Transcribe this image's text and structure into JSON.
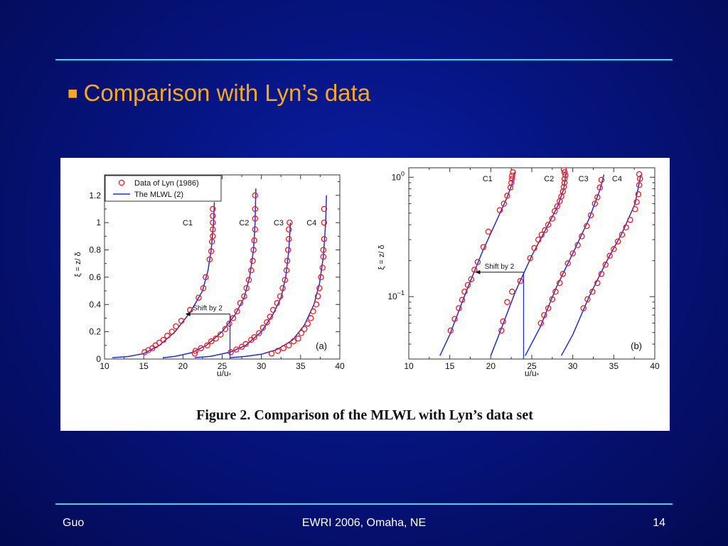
{
  "slide": {
    "title_bullet": "■",
    "title": "Comparison with Lyn’s data",
    "footer": {
      "author": "Guo",
      "event": "EWRI 2006, Omaha, NE",
      "page": "14"
    }
  },
  "figure": {
    "caption": "Figure 2.  Comparison of the MLWL with Lyn’s data set"
  },
  "colors": {
    "data_marker": "#ee1c24",
    "model_line": "#1f2fd6",
    "title": "#f7a81b",
    "rule": "#39d7e6"
  },
  "chart_data": [
    {
      "type": "scatter",
      "panel_label": "(a)",
      "xlabel": "u/u*",
      "ylabel": "ξ = z/ δ",
      "xlim": [
        10,
        40
      ],
      "ylim": [
        0,
        1.35
      ],
      "x_ticks": [
        "10",
        "15",
        "20",
        "25",
        "30",
        "35",
        "40"
      ],
      "y_ticks": [
        "0",
        "0.2",
        "0.4",
        "0.6",
        "0.8",
        "1",
        "1.2"
      ],
      "legend": {
        "position": "top-left",
        "entries": [
          "Data of Lyn (1986)",
          "The MLWL (2)"
        ]
      },
      "annotation": {
        "text": "Shift by 2",
        "from_x": 26,
        "to_x": 20.3,
        "y": 0.33
      },
      "series": [
        {
          "label": "C1",
          "label_pos": [
            20.6,
            1.0
          ],
          "points": [
            [
              15.1,
              0.05
            ],
            [
              15.6,
              0.065
            ],
            [
              16.1,
              0.08
            ],
            [
              16.5,
              0.1
            ],
            [
              17.0,
              0.12
            ],
            [
              17.5,
              0.14
            ],
            [
              18.0,
              0.17
            ],
            [
              18.6,
              0.2
            ],
            [
              19.1,
              0.24
            ],
            [
              19.8,
              0.28
            ],
            [
              20.9,
              0.36
            ],
            [
              22.0,
              0.45
            ],
            [
              22.6,
              0.52
            ],
            [
              22.9,
              0.6
            ],
            [
              23.4,
              0.73
            ],
            [
              23.6,
              0.79
            ],
            [
              23.7,
              0.86
            ],
            [
              23.8,
              0.9
            ],
            [
              23.8,
              0.95
            ],
            [
              23.8,
              1.0
            ],
            [
              23.8,
              1.05
            ],
            [
              23.8,
              1.1
            ]
          ],
          "curve": [
            [
              11,
              0.01
            ],
            [
              13,
              0.018
            ],
            [
              15,
              0.04
            ],
            [
              17,
              0.1
            ],
            [
              19,
              0.2
            ],
            [
              21,
              0.35
            ],
            [
              22.5,
              0.5
            ],
            [
              23.2,
              0.65
            ],
            [
              23.6,
              0.8
            ],
            [
              23.9,
              1.0
            ],
            [
              24.0,
              1.15
            ]
          ]
        },
        {
          "label": "C2",
          "label_pos": [
            27.8,
            1.0
          ],
          "points": [
            [
              21.5,
              0.04
            ],
            [
              21.6,
              0.06
            ],
            [
              22.3,
              0.08
            ],
            [
              23.1,
              0.1
            ],
            [
              23.6,
              0.13
            ],
            [
              24.2,
              0.15
            ],
            [
              24.8,
              0.18
            ],
            [
              25.4,
              0.22
            ],
            [
              25.9,
              0.26
            ],
            [
              26.4,
              0.3
            ],
            [
              26.9,
              0.35
            ],
            [
              27.3,
              0.41
            ],
            [
              27.8,
              0.46
            ],
            [
              28.1,
              0.52
            ],
            [
              28.4,
              0.58
            ],
            [
              28.7,
              0.65
            ],
            [
              28.9,
              0.72
            ],
            [
              29.0,
              0.8
            ],
            [
              29.1,
              0.87
            ],
            [
              29.2,
              0.95
            ],
            [
              29.2,
              1.03
            ],
            [
              29.2,
              1.1
            ],
            [
              29.2,
              1.2
            ]
          ],
          "curve": [
            [
              17.5,
              0.01
            ],
            [
              19,
              0.02
            ],
            [
              21,
              0.045
            ],
            [
              23,
              0.1
            ],
            [
              25,
              0.2
            ],
            [
              26.7,
              0.33
            ],
            [
              27.8,
              0.45
            ],
            [
              28.5,
              0.6
            ],
            [
              29.0,
              0.8
            ],
            [
              29.2,
              1.0
            ],
            [
              29.3,
              1.25
            ]
          ]
        },
        {
          "label": "C3",
          "label_pos": [
            32.2,
            1.0
          ],
          "points": [
            [
              26.1,
              0.05
            ],
            [
              26.8,
              0.07
            ],
            [
              27.5,
              0.09
            ],
            [
              28.0,
              0.11
            ],
            [
              28.7,
              0.14
            ],
            [
              29.1,
              0.16
            ],
            [
              29.7,
              0.19
            ],
            [
              30.2,
              0.23
            ],
            [
              30.7,
              0.27
            ],
            [
              31.1,
              0.31
            ],
            [
              31.5,
              0.36
            ],
            [
              32.0,
              0.41
            ],
            [
              32.4,
              0.46
            ],
            [
              32.7,
              0.52
            ],
            [
              33.0,
              0.58
            ],
            [
              33.2,
              0.65
            ],
            [
              33.3,
              0.72
            ],
            [
              33.4,
              0.8
            ],
            [
              33.5,
              0.88
            ],
            [
              33.5,
              0.95
            ],
            [
              33.6,
              1.0
            ]
          ],
          "curve": [
            [
              21.5,
              0.01
            ],
            [
              23.5,
              0.02
            ],
            [
              26,
              0.05
            ],
            [
              28,
              0.1
            ],
            [
              30,
              0.2
            ],
            [
              31.5,
              0.33
            ],
            [
              32.5,
              0.45
            ],
            [
              33.1,
              0.6
            ],
            [
              33.5,
              0.8
            ],
            [
              33.7,
              1.0
            ]
          ]
        },
        {
          "label": "C4",
          "label_pos": [
            36.4,
            1.0
          ],
          "points": [
            [
              31.3,
              0.04
            ],
            [
              32.1,
              0.06
            ],
            [
              32.8,
              0.08
            ],
            [
              33.5,
              0.1
            ],
            [
              34.1,
              0.13
            ],
            [
              34.7,
              0.15
            ],
            [
              35.1,
              0.19
            ],
            [
              35.5,
              0.22
            ],
            [
              35.9,
              0.26
            ],
            [
              36.3,
              0.3
            ],
            [
              36.6,
              0.35
            ],
            [
              37.0,
              0.4
            ],
            [
              37.2,
              0.46
            ],
            [
              37.4,
              0.52
            ],
            [
              37.6,
              0.6
            ],
            [
              37.8,
              0.67
            ],
            [
              37.9,
              0.75
            ],
            [
              37.9,
              0.8
            ],
            [
              38.0,
              0.88
            ],
            [
              38.0,
              1.0
            ],
            [
              38.0,
              1.1
            ]
          ],
          "curve": [
            [
              26,
              0.01
            ],
            [
              28,
              0.02
            ],
            [
              30,
              0.035
            ],
            [
              32,
              0.07
            ],
            [
              34,
              0.14
            ],
            [
              35.5,
              0.25
            ],
            [
              36.7,
              0.4
            ],
            [
              37.4,
              0.55
            ],
            [
              37.9,
              0.75
            ],
            [
              38.2,
              1.0
            ],
            [
              38.3,
              1.2
            ]
          ]
        }
      ]
    },
    {
      "type": "scatter",
      "panel_label": "(b)",
      "xlabel": "u/u*",
      "ylabel": "ξ = z/ δ",
      "xlim": [
        10,
        40
      ],
      "ylim": [
        0.03,
        1.2
      ],
      "y_scale": "log",
      "x_ticks": [
        "10",
        "15",
        "20",
        "25",
        "30",
        "35",
        "40"
      ],
      "y_ticks": [
        {
          "value": 1,
          "base": "10",
          "exp": "0"
        },
        {
          "value": 0.1,
          "base": "10",
          "exp": "−1"
        }
      ],
      "annotation": {
        "text": "Shift by 2",
        "from_x": 24,
        "to_x": 18.1,
        "y": 0.16
      },
      "series": [
        {
          "label": "C1",
          "label_pos": [
            19.6,
            0.98
          ],
          "points": [
            [
              15.1,
              0.052
            ],
            [
              15.6,
              0.065
            ],
            [
              16.1,
              0.08
            ],
            [
              16.5,
              0.094
            ],
            [
              16.8,
              0.11
            ],
            [
              17.2,
              0.125
            ],
            [
              17.6,
              0.14
            ],
            [
              18.0,
              0.168
            ],
            [
              18.4,
              0.195
            ],
            [
              19.1,
              0.26
            ],
            [
              19.7,
              0.35
            ],
            [
              21.1,
              0.53
            ],
            [
              21.6,
              0.6
            ],
            [
              22.0,
              0.7
            ],
            [
              22.4,
              0.82
            ],
            [
              22.5,
              0.9
            ],
            [
              22.6,
              0.97
            ],
            [
              22.6,
              1.03
            ],
            [
              22.7,
              1.1
            ]
          ],
          "curve": [
            [
              13.8,
              0.032
            ],
            [
              15,
              0.048
            ],
            [
              17,
              0.11
            ],
            [
              19,
              0.24
            ],
            [
              21,
              0.48
            ],
            [
              22,
              0.68
            ],
            [
              22.6,
              0.88
            ],
            [
              22.9,
              1.1
            ]
          ]
        },
        {
          "label": "C2",
          "label_pos": [
            27.1,
            0.98
          ],
          "points": [
            [
              21.3,
              0.052
            ],
            [
              21.5,
              0.062
            ],
            [
              22.0,
              0.09
            ],
            [
              22.6,
              0.11
            ],
            [
              23.6,
              0.135
            ],
            [
              24.8,
              0.21
            ],
            [
              25.3,
              0.255
            ],
            [
              25.8,
              0.3
            ],
            [
              26.2,
              0.33
            ],
            [
              26.6,
              0.36
            ],
            [
              27.0,
              0.4
            ],
            [
              27.5,
              0.45
            ],
            [
              27.8,
              0.52
            ],
            [
              28.1,
              0.57
            ],
            [
              28.4,
              0.63
            ],
            [
              28.6,
              0.69
            ],
            [
              28.8,
              0.76
            ],
            [
              28.9,
              0.83
            ],
            [
              29.0,
              0.9
            ],
            [
              29.0,
              0.97
            ],
            [
              29.1,
              1.04
            ],
            [
              29.0,
              1.1
            ],
            [
              28.9,
              1.16
            ]
          ],
          "curve": [
            [
              20.0,
              0.032
            ],
            [
              21,
              0.048
            ],
            [
              23,
              0.11
            ],
            [
              25,
              0.22
            ],
            [
              27,
              0.4
            ],
            [
              28.2,
              0.58
            ],
            [
              28.9,
              0.8
            ],
            [
              29.2,
              1.1
            ]
          ]
        },
        {
          "label": "C3",
          "label_pos": [
            31.3,
            0.98
          ],
          "points": [
            [
              26.1,
              0.06
            ],
            [
              26.5,
              0.07
            ],
            [
              27.0,
              0.08
            ],
            [
              27.5,
              0.095
            ],
            [
              27.9,
              0.11
            ],
            [
              28.4,
              0.13
            ],
            [
              28.8,
              0.155
            ],
            [
              29.4,
              0.19
            ],
            [
              30.0,
              0.23
            ],
            [
              30.6,
              0.27
            ],
            [
              31.1,
              0.32
            ],
            [
              31.7,
              0.39
            ],
            [
              32.2,
              0.48
            ],
            [
              32.7,
              0.6
            ],
            [
              33.0,
              0.68
            ],
            [
              33.3,
              0.82
            ],
            [
              33.5,
              0.95
            ]
          ],
          "curve": [
            [
              24.2,
              0.032
            ],
            [
              26,
              0.055
            ],
            [
              28,
              0.12
            ],
            [
              30,
              0.23
            ],
            [
              32,
              0.45
            ],
            [
              33.3,
              0.78
            ],
            [
              33.8,
              1.05
            ]
          ]
        },
        {
          "label": "C4",
          "label_pos": [
            35.4,
            0.98
          ],
          "points": [
            [
              31.3,
              0.08
            ],
            [
              31.8,
              0.095
            ],
            [
              32.4,
              0.11
            ],
            [
              33.0,
              0.13
            ],
            [
              33.5,
              0.155
            ],
            [
              34.0,
              0.185
            ],
            [
              34.5,
              0.22
            ],
            [
              35.0,
              0.25
            ],
            [
              35.5,
              0.29
            ],
            [
              36.0,
              0.33
            ],
            [
              36.5,
              0.38
            ],
            [
              37.0,
              0.44
            ],
            [
              37.6,
              0.54
            ],
            [
              37.8,
              0.62
            ],
            [
              38.0,
              0.72
            ],
            [
              38.1,
              0.86
            ],
            [
              38.2,
              0.97
            ],
            [
              38.1,
              1.06
            ]
          ],
          "curve": [
            [
              28.6,
              0.032
            ],
            [
              30,
              0.048
            ],
            [
              32,
              0.1
            ],
            [
              34,
              0.19
            ],
            [
              36,
              0.34
            ],
            [
              37.6,
              0.6
            ],
            [
              38.3,
              1.05
            ]
          ]
        }
      ]
    }
  ]
}
